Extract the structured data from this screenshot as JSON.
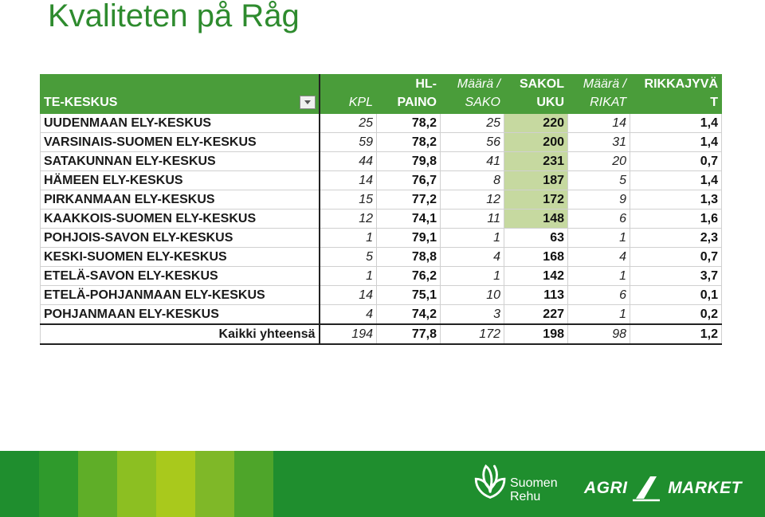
{
  "slide": {
    "title": "Kvaliteten på Råg"
  },
  "table": {
    "headers": [
      {
        "line1": "",
        "line2": "TE-KESKUS"
      },
      {
        "line1": "",
        "line2": "KPL"
      },
      {
        "line1": "HL-",
        "line2": "PAINO"
      },
      {
        "line1": "Määrä /",
        "line2": "SAKO"
      },
      {
        "line1": "SAKOL",
        "line2": "UKU"
      },
      {
        "line1": "Määrä /",
        "line2": "RIKAT"
      },
      {
        "line1": "RIKKAJYVÄ",
        "line2": "T"
      }
    ],
    "rows": [
      {
        "name": "UUDENMAAN ELY-KESKUS",
        "kpl": "25",
        "hl": "78,2",
        "sako": "25",
        "sakoluku": "220",
        "rikat": "14",
        "rikkajyvat": "1,4"
      },
      {
        "name": "VARSINAIS-SUOMEN ELY-KESKUS",
        "kpl": "59",
        "hl": "78,2",
        "sako": "56",
        "sakoluku": "200",
        "rikat": "31",
        "rikkajyvat": "1,4"
      },
      {
        "name": "SATAKUNNAN ELY-KESKUS",
        "kpl": "44",
        "hl": "79,8",
        "sako": "41",
        "sakoluku": "231",
        "rikat": "20",
        "rikkajyvat": "0,7"
      },
      {
        "name": "HÄMEEN ELY-KESKUS",
        "kpl": "14",
        "hl": "76,7",
        "sako": "8",
        "sakoluku": "187",
        "rikat": "5",
        "rikkajyvat": "1,4"
      },
      {
        "name": "PIRKANMAAN ELY-KESKUS",
        "kpl": "15",
        "hl": "77,2",
        "sako": "12",
        "sakoluku": "172",
        "rikat": "9",
        "rikkajyvat": "1,3"
      },
      {
        "name": "KAAKKOIS-SUOMEN ELY-KESKUS",
        "kpl": "12",
        "hl": "74,1",
        "sako": "11",
        "sakoluku": "148",
        "rikat": "6",
        "rikkajyvat": "1,6"
      },
      {
        "name": "POHJOIS-SAVON ELY-KESKUS",
        "kpl": "1",
        "hl": "79,1",
        "sako": "1",
        "sakoluku": "63",
        "rikat": "1",
        "rikkajyvat": "2,3"
      },
      {
        "name": "KESKI-SUOMEN ELY-KESKUS",
        "kpl": "5",
        "hl": "78,8",
        "sako": "4",
        "sakoluku": "168",
        "rikat": "4",
        "rikkajyvat": "0,7"
      },
      {
        "name": "ETELÄ-SAVON ELY-KESKUS",
        "kpl": "1",
        "hl": "76,2",
        "sako": "1",
        "sakoluku": "142",
        "rikat": "1",
        "rikkajyvat": "3,7"
      },
      {
        "name": "ETELÄ-POHJANMAAN ELY-KESKUS",
        "kpl": "14",
        "hl": "75,1",
        "sako": "10",
        "sakoluku": "113",
        "rikat": "6",
        "rikkajyvat": "0,1"
      },
      {
        "name": "POHJANMAAN ELY-KESKUS",
        "kpl": "4",
        "hl": "74,2",
        "sako": "3",
        "sakoluku": "227",
        "rikat": "1",
        "rikkajyvat": "0,2"
      }
    ],
    "total": {
      "name": "Kaikki yhteensä",
      "kpl": "194",
      "hl": "77,8",
      "sako": "172",
      "sakoluku": "198",
      "rikat": "98",
      "rikkajyvat": "1,2"
    },
    "highlighted_rows_sakoluku": 6
  },
  "footer": {
    "brand1_line1": "Suomen",
    "brand1_line2": "Rehu",
    "brand2_part1": "AGRI",
    "brand2_part2": "MARKET",
    "stripe_colors": [
      "#2f9a2c",
      "#5fae28",
      "#8cbf22",
      "#a9c91c",
      "#7fb828",
      "#4ea52a"
    ]
  },
  "colors": {
    "header_bg": "#4a9d3a",
    "highlight": "#c6d9a0",
    "title": "#2e8b2e",
    "footer_bg": "#1f8e2e"
  }
}
